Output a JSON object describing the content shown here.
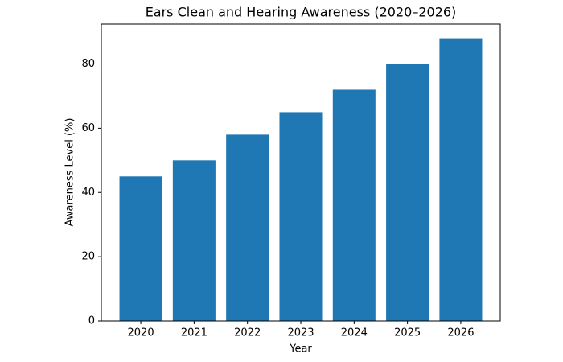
{
  "chart_data": {
    "type": "bar",
    "title": "Ears Clean and Hearing Awareness (2020–2026)",
    "x_label": "Year",
    "y_label": "Awareness Level (%)",
    "categories": [
      "2020",
      "2021",
      "2022",
      "2023",
      "2024",
      "2025",
      "2026"
    ],
    "values": [
      45,
      50,
      58,
      65,
      72,
      80,
      88
    ],
    "color": "#1f77b4",
    "ylim": [
      0,
      92.4
    ],
    "yticks": [
      0,
      20,
      40,
      60,
      80
    ],
    "grid": false
  }
}
